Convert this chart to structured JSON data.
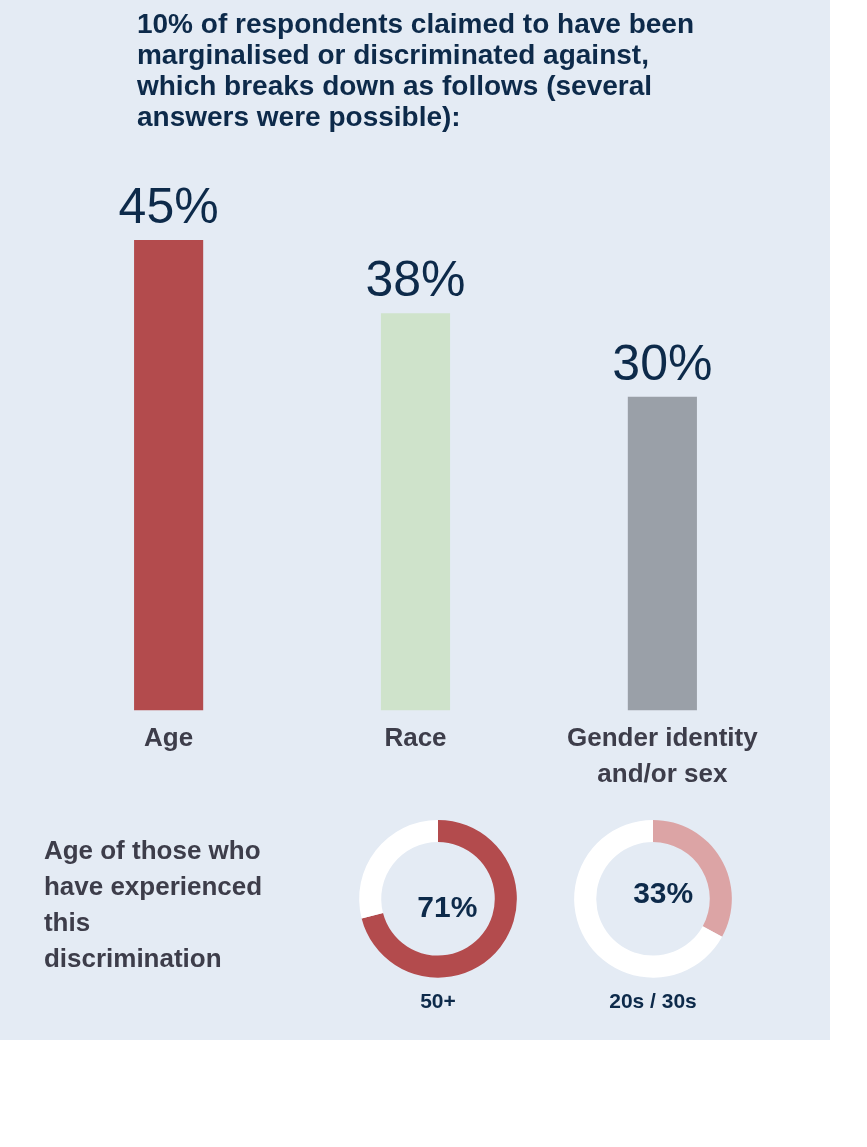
{
  "chart_data": [
    {
      "type": "bar",
      "title": "10% of respondents claimed to have been marginalised or discriminated against, which breaks down as follows (several answers were possible):",
      "categories": [
        "Age",
        "Race",
        "Gender identity and/or sex"
      ],
      "values": [
        45,
        38,
        30
      ],
      "colors": [
        "#b34b4d",
        "#cfe3cb",
        "#9aa0a8"
      ],
      "value_labels": [
        "45%",
        "38%",
        "30%"
      ]
    },
    {
      "type": "donut",
      "title": "50+",
      "categories": [
        null,
        null
      ],
      "values": [
        71,
        29
      ],
      "colors": [
        "#b34b4d",
        "#ffffff"
      ],
      "value_labels": [
        "71%",
        null
      ],
      "annotations": [
        "Age of those who have experienced this discrimination"
      ]
    },
    {
      "type": "donut",
      "title": "20s / 30s",
      "categories": [
        null,
        null
      ],
      "values": [
        33,
        67
      ],
      "colors": [
        "#dca4a5",
        "#ffffff"
      ],
      "value_labels": [
        "33%",
        null
      ]
    }
  ]
}
